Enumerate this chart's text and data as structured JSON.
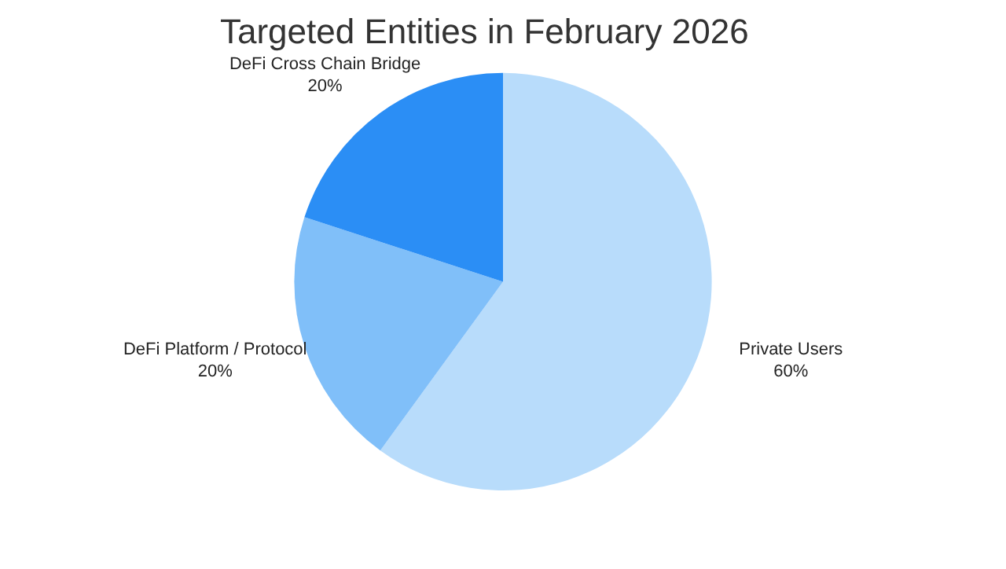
{
  "chart_data": {
    "type": "pie",
    "title": "Targeted Entities in February 2026",
    "categories": [
      "Private Users",
      "DeFi Platform / Protocol",
      "DeFi Cross Chain Bridge"
    ],
    "values": [
      60,
      20,
      20
    ],
    "value_labels": [
      "60%",
      "20%",
      "20%"
    ],
    "colors": [
      "#b8dcfb",
      "#80bff9",
      "#2b8ef5"
    ],
    "legend": false
  }
}
